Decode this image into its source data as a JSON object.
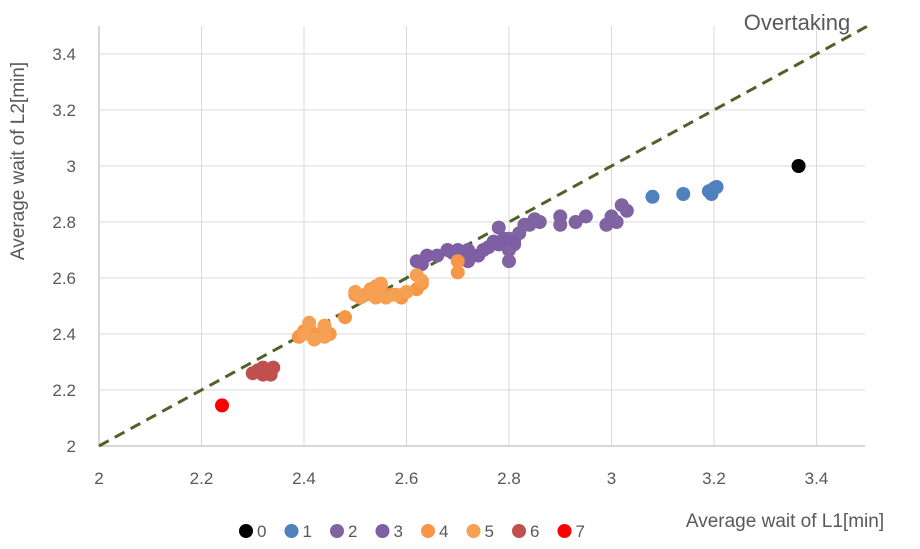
{
  "chart_data": {
    "type": "scatter",
    "title": "",
    "xlabel": "Average wait of L1[min]",
    "ylabel": "Average wait of L2[min]",
    "annotation": "Overtaking",
    "xlim": [
      2,
      3.5
    ],
    "ylim": [
      2,
      3.5
    ],
    "xticks": [
      "2",
      "2.2",
      "2.4",
      "2.6",
      "2.8",
      "3",
      "3.2",
      "3.4"
    ],
    "yticks": [
      "2",
      "2.2",
      "2.4",
      "2.6",
      "2.8",
      "3",
      "3.2",
      "3.4"
    ],
    "grid": true,
    "legend_position": "bottom",
    "reference_line": {
      "x": [
        2,
        3.5
      ],
      "y": [
        2,
        3.5
      ],
      "style": "dashed",
      "color": "#4f6228"
    },
    "series": [
      {
        "name": "0",
        "color": "#000000",
        "points": [
          [
            3.365,
            3.0
          ]
        ]
      },
      {
        "name": "1",
        "color": "#4f81bd",
        "points": [
          [
            3.08,
            2.89
          ],
          [
            3.14,
            2.9
          ],
          [
            3.19,
            2.91
          ],
          [
            3.195,
            2.9
          ],
          [
            3.2,
            2.92
          ],
          [
            3.205,
            2.925
          ]
        ]
      },
      {
        "name": "2",
        "color": "#8064a2",
        "points": [
          [
            2.78,
            2.78
          ],
          [
            2.8,
            2.74
          ],
          [
            2.81,
            2.72
          ],
          [
            2.8,
            2.66
          ],
          [
            2.82,
            2.76
          ],
          [
            2.83,
            2.79
          ],
          [
            2.84,
            2.79
          ],
          [
            2.86,
            2.8
          ],
          [
            2.9,
            2.82
          ],
          [
            2.9,
            2.79
          ],
          [
            2.93,
            2.8
          ],
          [
            2.95,
            2.82
          ],
          [
            2.99,
            2.79
          ],
          [
            3.0,
            2.82
          ],
          [
            3.01,
            2.8
          ],
          [
            3.02,
            2.86
          ],
          [
            3.03,
            2.84
          ],
          [
            2.85,
            2.81
          ],
          [
            2.8,
            2.7
          ]
        ]
      },
      {
        "name": "3",
        "color": "#7e5fa3",
        "points": [
          [
            2.62,
            2.66
          ],
          [
            2.64,
            2.68
          ],
          [
            2.66,
            2.68
          ],
          [
            2.68,
            2.7
          ],
          [
            2.69,
            2.69
          ],
          [
            2.7,
            2.7
          ],
          [
            2.71,
            2.69
          ],
          [
            2.72,
            2.7
          ],
          [
            2.73,
            2.68
          ],
          [
            2.74,
            2.68
          ],
          [
            2.75,
            2.7
          ],
          [
            2.76,
            2.71
          ],
          [
            2.77,
            2.73
          ],
          [
            2.78,
            2.72
          ],
          [
            2.79,
            2.74
          ],
          [
            2.81,
            2.73
          ],
          [
            2.72,
            2.66
          ],
          [
            2.63,
            2.65
          ]
        ]
      },
      {
        "name": "4",
        "color": "#f79646",
        "points": [
          [
            2.39,
            2.39
          ],
          [
            2.41,
            2.42
          ],
          [
            2.42,
            2.39
          ],
          [
            2.44,
            2.41
          ],
          [
            2.45,
            2.4
          ],
          [
            2.48,
            2.46
          ],
          [
            2.5,
            2.54
          ],
          [
            2.52,
            2.54
          ],
          [
            2.53,
            2.56
          ],
          [
            2.55,
            2.57
          ],
          [
            2.57,
            2.54
          ],
          [
            2.59,
            2.53
          ],
          [
            2.62,
            2.56
          ],
          [
            2.63,
            2.58
          ],
          [
            2.7,
            2.66
          ],
          [
            2.7,
            2.62
          ],
          [
            2.4,
            2.41
          ],
          [
            2.43,
            2.4
          ]
        ]
      },
      {
        "name": "5",
        "color": "#f5a052",
        "points": [
          [
            2.4,
            2.4
          ],
          [
            2.41,
            2.44
          ],
          [
            2.42,
            2.38
          ],
          [
            2.44,
            2.43
          ],
          [
            2.5,
            2.55
          ],
          [
            2.51,
            2.53
          ],
          [
            2.53,
            2.55
          ],
          [
            2.54,
            2.57
          ],
          [
            2.55,
            2.58
          ],
          [
            2.56,
            2.53
          ],
          [
            2.58,
            2.54
          ],
          [
            2.6,
            2.55
          ],
          [
            2.62,
            2.61
          ],
          [
            2.63,
            2.59
          ],
          [
            2.54,
            2.53
          ],
          [
            2.44,
            2.39
          ]
        ]
      },
      {
        "name": "6",
        "color": "#c0504d",
        "points": [
          [
            2.3,
            2.26
          ],
          [
            2.31,
            2.27
          ],
          [
            2.32,
            2.28
          ],
          [
            2.33,
            2.26
          ],
          [
            2.34,
            2.28
          ],
          [
            2.335,
            2.255
          ],
          [
            2.32,
            2.255
          ]
        ]
      },
      {
        "name": "7",
        "color": "#ff0000",
        "points": [
          [
            2.24,
            2.145
          ]
        ]
      }
    ]
  }
}
